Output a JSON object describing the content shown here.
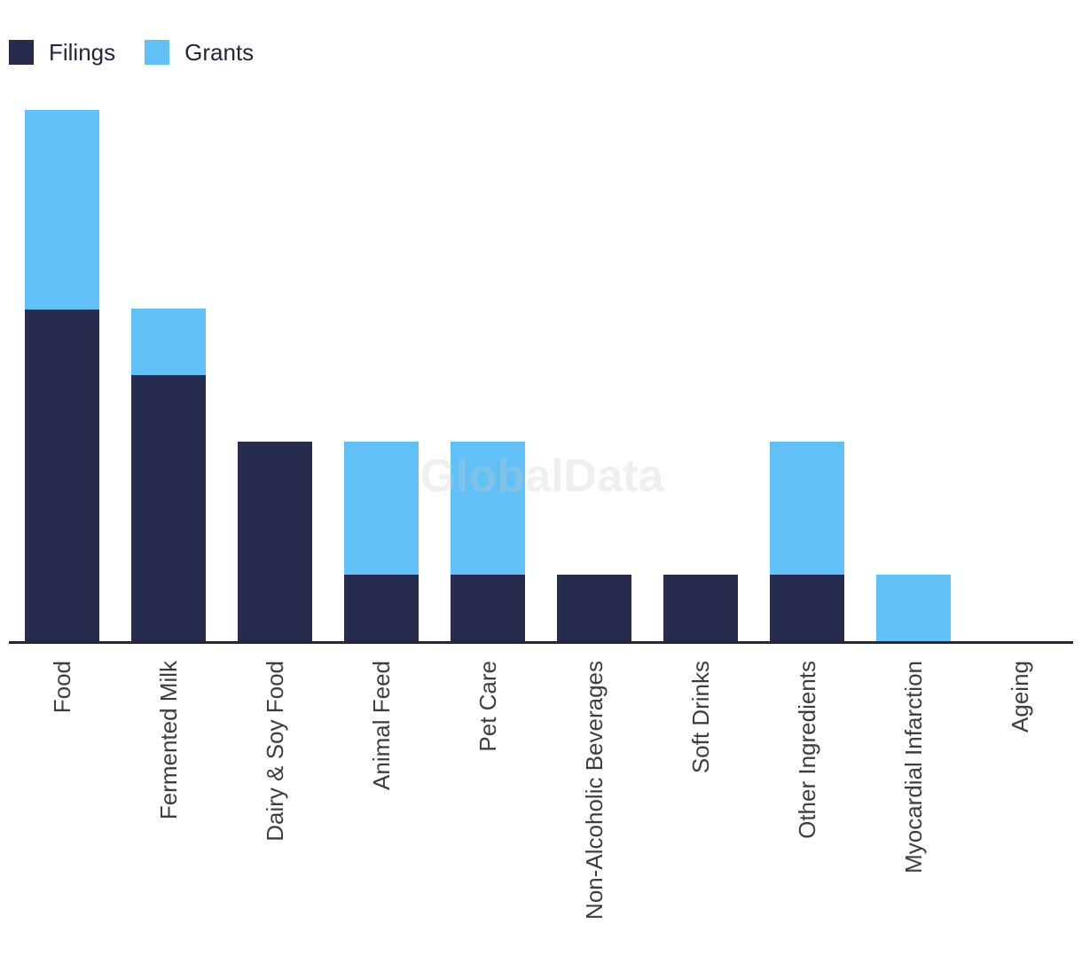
{
  "chart_data": {
    "type": "bar",
    "stacked": true,
    "title": "",
    "categories": [
      "Food",
      "Fermented Milk",
      "Dairy & Soy Food",
      "Animal Feed",
      "Pet Care",
      "Non-Alcoholic Beverages",
      "Soft Drinks",
      "Other Ingredients",
      "Myocardial Infarction",
      "Ageing"
    ],
    "series": [
      {
        "name": "Filings",
        "color": "#272b4d",
        "values": [
          5,
          4,
          3,
          1,
          1,
          1,
          1,
          1,
          0,
          0
        ]
      },
      {
        "name": "Grants",
        "color": "#61c1f7",
        "values": [
          3,
          1,
          0,
          2,
          2,
          0,
          0,
          2,
          1,
          0
        ]
      }
    ],
    "xlabel": "",
    "ylabel": "",
    "ylim": [
      0,
      8
    ],
    "y_axis_visible": false,
    "grid": false,
    "legend_position": "top-left",
    "watermark": "GlobalData"
  },
  "colors": {
    "filings": "#272b4d",
    "grants": "#61c1f7",
    "axis_line": "#23263c",
    "tick_label": "#3d3d3d",
    "legend_text": "#23263c",
    "watermark_on_white": "#f2f2f2"
  }
}
